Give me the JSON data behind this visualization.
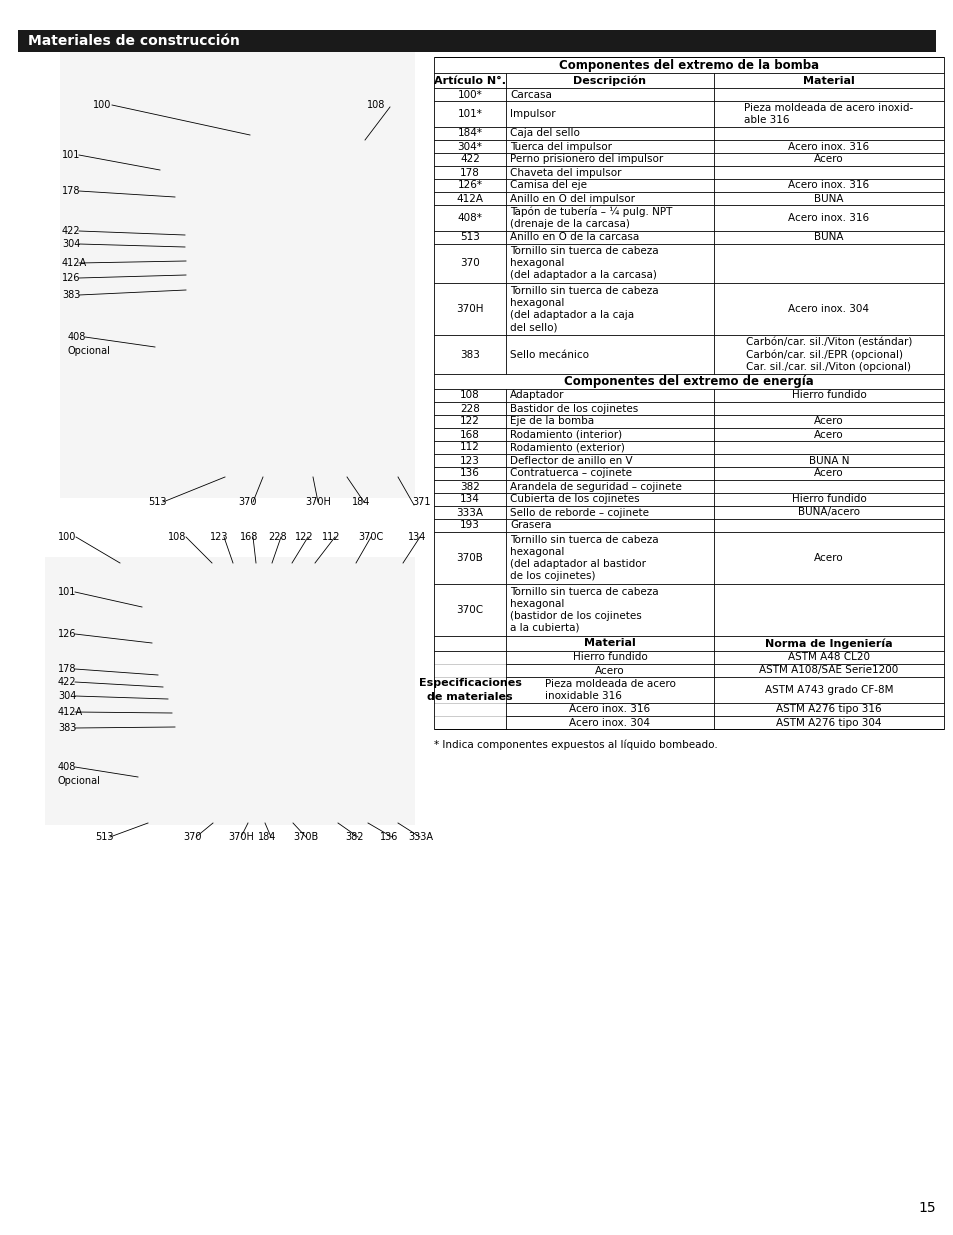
{
  "title": "Materiales de construcción",
  "page_number": "15",
  "bg_color": "#ffffff",
  "title_bg_color": "#1a1a1a",
  "title_text_color": "#ffffff",
  "title_fontsize": 10,
  "footnote": "* Indica componentes expuestos al líquido bombeado.",
  "table_header_main": "Componentes del extremo de la bomba",
  "table_header_energy": "Componentes del extremo de energía",
  "table_header_specs": "Especificaciones\nde materiales",
  "col_headers": [
    "Artículo N°.",
    "Descripción",
    "Material"
  ],
  "col_headers2": [
    "Material",
    "Norma de Ingeniería"
  ],
  "pump_rows": [
    [
      "100*",
      "Carcasa",
      ""
    ],
    [
      "101*",
      "Impulsor",
      "Pieza moldeada de acero inoxid-\nable 316"
    ],
    [
      "184*",
      "Caja del sello",
      ""
    ],
    [
      "304*",
      "Tuerca del impulsor",
      "Acero inox. 316"
    ],
    [
      "422",
      "Perno prisionero del impulsor",
      "Acero"
    ],
    [
      "178",
      "Chaveta del impulsor",
      ""
    ],
    [
      "126*",
      "Camisa del eje",
      "Acero inox. 316"
    ],
    [
      "412A",
      "Anillo en O del impulsor",
      "BUNA"
    ],
    [
      "408*",
      "Tapón de tubería – ¼ pulg. NPT\n(drenaje de la carcasa)",
      "Acero inox. 316"
    ],
    [
      "513",
      "Anillo en O de la carcasa",
      "BUNA"
    ],
    [
      "370",
      "Tornillo sin tuerca de cabeza\nhexagonal\n(del adaptador a la carcasa)",
      ""
    ],
    [
      "370H",
      "Tornillo sin tuerca de cabeza\nhexagonal\n(del adaptador a la caja\ndel sello)",
      "Acero inox. 304"
    ],
    [
      "383",
      "Sello mecánico",
      "Carbón/car. sil./Viton (estándar)\nCarbón/car. sil./EPR (opcional)\nCar. sil./car. sil./Viton (opcional)"
    ]
  ],
  "pump_row_heights": [
    13,
    26,
    13,
    13,
    13,
    13,
    13,
    13,
    26,
    13,
    39,
    52,
    39
  ],
  "energy_rows": [
    [
      "108",
      "Adaptador",
      "Hierro fundido"
    ],
    [
      "228",
      "Bastidor de los cojinetes",
      ""
    ],
    [
      "122",
      "Eje de la bomba",
      "Acero"
    ],
    [
      "168",
      "Rodamiento (interior)",
      "Acero"
    ],
    [
      "112",
      "Rodamiento (exterior)",
      ""
    ],
    [
      "123",
      "Deflector de anillo en V",
      "BUNA N"
    ],
    [
      "136",
      "Contratuerca – cojinete",
      "Acero"
    ],
    [
      "382",
      "Arandela de seguridad – cojinete",
      ""
    ],
    [
      "134",
      "Cubierta de los cojinetes",
      "Hierro fundido"
    ],
    [
      "333A",
      "Sello de reborde – cojinete",
      "BUNA/acero"
    ],
    [
      "193",
      "Grasera",
      ""
    ],
    [
      "370B",
      "Tornillo sin tuerca de cabeza\nhexagonal\n(del adaptador al bastidor\nde los cojinetes)",
      "Acero"
    ],
    [
      "370C",
      "Tornillo sin tuerca de cabeza\nhexagonal\n(bastidor de los cojinetes\na la cubierta)",
      ""
    ]
  ],
  "energy_row_heights": [
    13,
    13,
    13,
    13,
    13,
    13,
    13,
    13,
    13,
    13,
    13,
    52,
    52
  ],
  "specs_rows": [
    [
      "Hierro fundido",
      "ASTM A48 CL20"
    ],
    [
      "Acero",
      "ASTM A108/SAE Serie1200"
    ],
    [
      "Pieza moldeada de acero\ninoxidable 316",
      "ASTM A743 grado CF-8M"
    ],
    [
      "Acero inox. 316",
      "ASTM A276 tipo 316"
    ],
    [
      "Acero inox. 304",
      "ASTM A276 tipo 304"
    ]
  ],
  "specs_row_heights": [
    13,
    13,
    26,
    13,
    13
  ],
  "top_labels": [
    [
      93,
      1130,
      "100"
    ],
    [
      367,
      1130,
      "108"
    ],
    [
      62,
      1080,
      "101"
    ],
    [
      62,
      1044,
      "178"
    ],
    [
      62,
      1004,
      "422"
    ],
    [
      62,
      991,
      "304"
    ],
    [
      62,
      972,
      "412A"
    ],
    [
      62,
      957,
      "126"
    ],
    [
      62,
      940,
      "383"
    ],
    [
      68,
      898,
      "408"
    ],
    [
      68,
      884,
      "Opcional"
    ],
    [
      148,
      733,
      "513"
    ],
    [
      238,
      733,
      "370"
    ],
    [
      305,
      733,
      "370H"
    ],
    [
      352,
      733,
      "184"
    ],
    [
      412,
      733,
      "371"
    ]
  ],
  "top_lines": [
    [
      [
        112,
        1130
      ],
      [
        190,
        1100
      ]
    ],
    [
      [
        367,
        1128
      ],
      [
        350,
        1095
      ]
    ],
    [
      [
        80,
        1080
      ],
      [
        165,
        1065
      ]
    ],
    [
      [
        80,
        1044
      ],
      [
        170,
        1040
      ]
    ],
    [
      [
        80,
        1004
      ],
      [
        185,
        1000
      ]
    ],
    [
      [
        80,
        991
      ],
      [
        185,
        990
      ]
    ],
    [
      [
        80,
        972
      ],
      [
        185,
        975
      ]
    ],
    [
      [
        80,
        957
      ],
      [
        185,
        960
      ]
    ],
    [
      [
        80,
        940
      ],
      [
        185,
        945
      ]
    ],
    [
      [
        86,
        898
      ],
      [
        160,
        890
      ]
    ],
    [
      [
        165,
        733
      ],
      [
        220,
        760
      ]
    ],
    [
      [
        255,
        733
      ],
      [
        260,
        760
      ]
    ],
    [
      [
        320,
        733
      ],
      [
        310,
        760
      ]
    ],
    [
      [
        365,
        733
      ],
      [
        340,
        760
      ]
    ],
    [
      [
        415,
        730
      ],
      [
        395,
        760
      ]
    ]
  ],
  "bot_labels": [
    [
      58,
      698,
      "100"
    ],
    [
      168,
      698,
      "108"
    ],
    [
      210,
      698,
      "123"
    ],
    [
      240,
      698,
      "168"
    ],
    [
      268,
      698,
      "228"
    ],
    [
      295,
      698,
      "122"
    ],
    [
      322,
      698,
      "112"
    ],
    [
      358,
      698,
      "370C"
    ],
    [
      408,
      698,
      "134"
    ],
    [
      58,
      643,
      "101"
    ],
    [
      58,
      601,
      "126"
    ],
    [
      58,
      566,
      "178"
    ],
    [
      58,
      553,
      "422"
    ],
    [
      58,
      539,
      "304"
    ],
    [
      58,
      523,
      "412A"
    ],
    [
      58,
      507,
      "383"
    ],
    [
      58,
      468,
      "408"
    ],
    [
      58,
      454,
      "Opcional"
    ],
    [
      95,
      398,
      "513"
    ],
    [
      183,
      398,
      "370"
    ],
    [
      228,
      398,
      "370H"
    ],
    [
      258,
      398,
      "184"
    ],
    [
      293,
      398,
      "370B"
    ],
    [
      345,
      398,
      "382"
    ],
    [
      380,
      398,
      "136"
    ],
    [
      408,
      398,
      "333A"
    ]
  ],
  "bot_lines": [
    [
      [
        76,
        698
      ],
      [
        125,
        678
      ]
    ],
    [
      [
        185,
        698
      ],
      [
        210,
        678
      ]
    ],
    [
      [
        225,
        698
      ],
      [
        230,
        678
      ]
    ],
    [
      [
        255,
        698
      ],
      [
        255,
        678
      ]
    ],
    [
      [
        283,
        698
      ],
      [
        273,
        678
      ]
    ],
    [
      [
        310,
        698
      ],
      [
        295,
        678
      ]
    ],
    [
      [
        337,
        698
      ],
      [
        318,
        678
      ]
    ],
    [
      [
        373,
        698
      ],
      [
        355,
        678
      ]
    ],
    [
      [
        420,
        698
      ],
      [
        400,
        678
      ]
    ],
    [
      [
        76,
        643
      ],
      [
        145,
        630
      ]
    ],
    [
      [
        76,
        601
      ],
      [
        155,
        595
      ]
    ],
    [
      [
        76,
        566
      ],
      [
        160,
        562
      ]
    ],
    [
      [
        76,
        553
      ],
      [
        165,
        550
      ]
    ],
    [
      [
        76,
        539
      ],
      [
        170,
        538
      ]
    ],
    [
      [
        76,
        523
      ],
      [
        175,
        525
      ]
    ],
    [
      [
        76,
        507
      ],
      [
        178,
        510
      ]
    ],
    [
      [
        76,
        468
      ],
      [
        140,
        460
      ]
    ],
    [
      [
        112,
        398
      ],
      [
        150,
        415
      ]
    ],
    [
      [
        198,
        398
      ],
      [
        215,
        415
      ]
    ],
    [
      [
        243,
        398
      ],
      [
        250,
        415
      ]
    ],
    [
      [
        272,
        398
      ],
      [
        268,
        415
      ]
    ],
    [
      [
        308,
        398
      ],
      [
        295,
        415
      ]
    ],
    [
      [
        358,
        398
      ],
      [
        340,
        415
      ]
    ],
    [
      [
        393,
        398
      ],
      [
        370,
        415
      ]
    ],
    [
      [
        420,
        398
      ],
      [
        400,
        415
      ]
    ]
  ]
}
